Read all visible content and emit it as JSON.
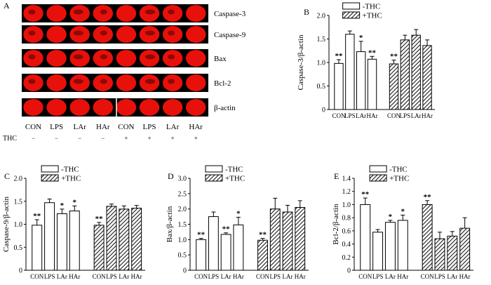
{
  "panel_a": {
    "letter": "A",
    "blots": [
      "Caspase-3",
      "Caspase-9",
      "Bax",
      "Bcl-2",
      "β-actin"
    ],
    "lanes": [
      "CON",
      "LPS",
      "LAr",
      "HAr",
      "CON",
      "LPS",
      "LAr",
      "HAr"
    ],
    "thc_label": "THC",
    "thc_signs": [
      "−",
      "−",
      "−",
      "−",
      "+",
      "+",
      "+",
      "+"
    ],
    "band_color": "#e8100a",
    "band_dark_color": "#3a0505"
  },
  "legend": {
    "minus": "-THC",
    "plus": "+THC"
  },
  "chart_data": [
    {
      "letter": "B",
      "type": "bar",
      "ylabel": "Caspase-3/β-actin",
      "ylim": [
        0,
        2.0
      ],
      "yticks": [
        "0",
        "0.5",
        "1.0",
        "1.5",
        "2.0"
      ],
      "categories": [
        "CON",
        "LPS",
        "LAr",
        "HAr"
      ],
      "series": [
        {
          "name": "-THC",
          "values": [
            0.98,
            1.6,
            1.23,
            1.07
          ],
          "errors": [
            0.08,
            0.07,
            0.22,
            0.06
          ],
          "sig": [
            "**",
            "",
            "*",
            "**"
          ]
        },
        {
          "name": "+THC",
          "values": [
            0.97,
            1.48,
            1.58,
            1.36
          ],
          "errors": [
            0.08,
            0.1,
            0.12,
            0.12
          ],
          "sig": [
            "**",
            "",
            "",
            ""
          ]
        }
      ]
    },
    {
      "letter": "C",
      "type": "bar",
      "ylabel": "Caspase-9/β-actin",
      "ylim": [
        0,
        2.0
      ],
      "yticks": [
        "0",
        "0.5",
        "1.0",
        "1.5",
        "2.0"
      ],
      "categories": [
        "CON",
        "LPS",
        "LAr",
        "HAr"
      ],
      "series": [
        {
          "name": "-THC",
          "values": [
            0.98,
            1.47,
            1.23,
            1.29
          ],
          "errors": [
            0.12,
            0.08,
            0.1,
            0.11
          ],
          "sig": [
            "**",
            "",
            "*",
            "*"
          ]
        },
        {
          "name": "+THC",
          "values": [
            0.98,
            1.39,
            1.33,
            1.35
          ],
          "errors": [
            0.06,
            0.05,
            0.07,
            0.06
          ],
          "sig": [
            "**",
            "",
            "",
            ""
          ]
        }
      ]
    },
    {
      "letter": "D",
      "type": "bar",
      "ylabel": "Bax/β-actin",
      "ylim": [
        0,
        3.0
      ],
      "yticks": [
        "0",
        "0.5",
        "1.0",
        "1.5",
        "2.0",
        "2.5",
        "3.0"
      ],
      "categories": [
        "CON",
        "LPS",
        "LAr",
        "HAr"
      ],
      "series": [
        {
          "name": "-THC",
          "values": [
            1.0,
            1.75,
            1.17,
            1.48
          ],
          "errors": [
            0.04,
            0.15,
            0.05,
            0.25
          ],
          "sig": [
            "**",
            "",
            "**",
            "*"
          ]
        },
        {
          "name": "+THC",
          "values": [
            0.98,
            2.0,
            1.9,
            2.05
          ],
          "errors": [
            0.06,
            0.35,
            0.22,
            0.22
          ],
          "sig": [
            "**",
            "",
            "",
            ""
          ]
        }
      ]
    },
    {
      "letter": "E",
      "type": "bar",
      "ylabel": "Bcl-2/β-actin",
      "ylim": [
        0,
        1.4
      ],
      "yticks": [
        "0",
        "0.2",
        "0.4",
        "0.6",
        "0.8",
        "1.0",
        "1.2",
        "1.4"
      ],
      "categories": [
        "CON",
        "LPS",
        "LAr",
        "HAr"
      ],
      "series": [
        {
          "name": "-THC",
          "values": [
            1.0,
            0.58,
            0.73,
            0.76
          ],
          "errors": [
            0.1,
            0.04,
            0.03,
            0.08
          ],
          "sig": [
            "**",
            "",
            "*",
            "*"
          ]
        },
        {
          "name": "+THC",
          "values": [
            1.0,
            0.48,
            0.52,
            0.64
          ],
          "errors": [
            0.06,
            0.1,
            0.07,
            0.16
          ],
          "sig": [
            "**",
            "",
            "",
            ""
          ]
        }
      ]
    }
  ]
}
